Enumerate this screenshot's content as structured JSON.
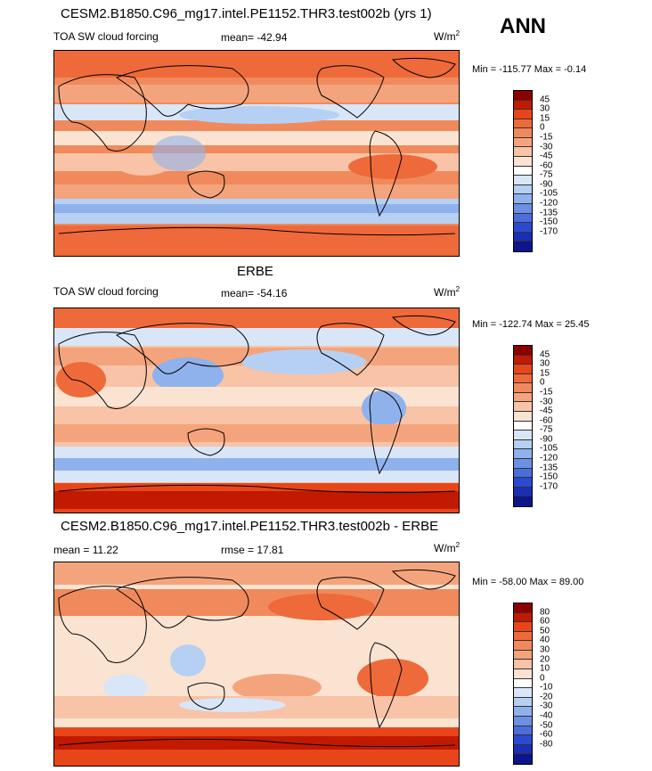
{
  "panel1": {
    "title": "CESM2.B1850.C96_mg17.intel.PE1152.THR3.test002b (yrs 1)",
    "left": "TOA SW cloud forcing",
    "center": "mean= -42.94",
    "unit": "W/m",
    "unit_sup": "2",
    "minmax": "Min = -115.77 Max =  -0.14"
  },
  "ann_label": "ANN",
  "panel2": {
    "title": "ERBE",
    "left": "TOA SW cloud forcing",
    "center": "mean= -54.16",
    "unit": "W/m",
    "unit_sup": "2",
    "minmax": "Min = -122.74 Max =  25.45"
  },
  "panel3": {
    "title": "CESM2.B1850.C96_mg17.intel.PE1152.THR3.test002b - ERBE",
    "left": "mean =  11.22",
    "center": "rmse =  17.81",
    "unit": "W/m",
    "unit_sup": "2",
    "minmax": "Min = -58.00 Max =  89.00"
  },
  "colorbar_abs": {
    "labels": [
      "45",
      "30",
      "15",
      "0",
      "-15",
      "-30",
      "-45",
      "-60",
      "-75",
      "-90",
      "-105",
      "-120",
      "-135",
      "-150",
      "-170"
    ],
    "colors": [
      "#8b0000",
      "#c11a00",
      "#e8461a",
      "#ee6a3a",
      "#f08a5c",
      "#f4a47c",
      "#f8c3a6",
      "#fbe3d2",
      "#ffffff",
      "#d8e6f8",
      "#b6d0f3",
      "#8fb2ec",
      "#6b91e4",
      "#4a6fdc",
      "#2a4bd0",
      "#1a2fb4",
      "#0c168a"
    ]
  },
  "colorbar_diff": {
    "labels": [
      "80",
      "60",
      "50",
      "40",
      "30",
      "20",
      "10",
      "0",
      "-10",
      "-20",
      "-30",
      "-40",
      "-50",
      "-60",
      "-80"
    ],
    "colors": [
      "#8b0000",
      "#c11a00",
      "#e8461a",
      "#ee6a3a",
      "#f08a5c",
      "#f4a47c",
      "#f8c3a6",
      "#fbe3d2",
      "#ffffff",
      "#d8e6f8",
      "#b6d0f3",
      "#8fb2ec",
      "#6b91e4",
      "#4a6fdc",
      "#2a4bd0",
      "#1a2fb4",
      "#0c168a"
    ]
  }
}
